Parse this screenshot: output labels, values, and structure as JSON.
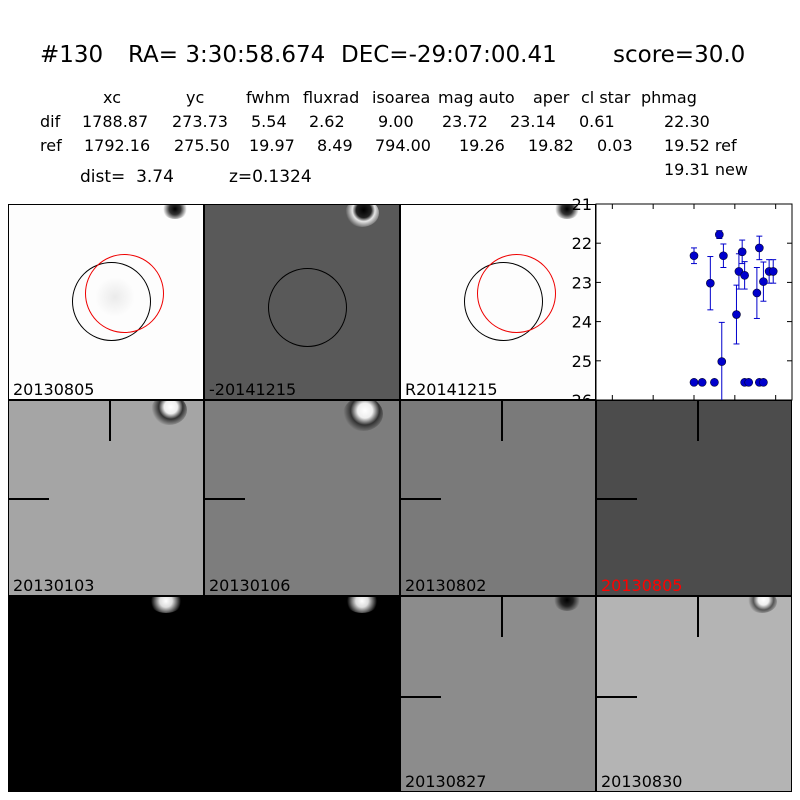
{
  "header": {
    "id": "#130",
    "ra": "RA= 3:30:58.674",
    "dec": "DEC=-29:07:00.41",
    "score": "score=30.0"
  },
  "table": {
    "columns": [
      "xc",
      "yc",
      "fwhm",
      "fluxrad",
      "isoarea",
      "mag auto",
      "aper",
      "cl star",
      "phmag"
    ],
    "dif": {
      "label": "dif",
      "xc": "1788.87",
      "yc": "273.73",
      "fwhm": "5.54",
      "fluxrad": "2.62",
      "isoarea": "9.00",
      "mag_auto": "23.72",
      "aper": "23.14",
      "cl_star": "0.61",
      "phmag": "22.30"
    },
    "ref": {
      "label": "ref",
      "xc": "1792.16",
      "yc": "275.50",
      "fwhm": "19.97",
      "fluxrad": "8.49",
      "isoarea": "794.00",
      "mag_auto": "19.26",
      "aper": "19.82",
      "cl_star": "0.03",
      "phmag": "19.52 ref"
    },
    "new": "19.31 new"
  },
  "dist": "dist=  3.74",
  "z": "z=0.1324",
  "panels": {
    "row1": [
      "20130805",
      "-20141215",
      "R20141215"
    ],
    "row2": [
      "20130103",
      "20130106",
      "20130802",
      "20130805"
    ],
    "row3": [
      "",
      "",
      "20130827",
      "20130830"
    ],
    "highlight_label_color": "#ff0000"
  },
  "chart_data": {
    "type": "scatter",
    "title": "",
    "xlabel": "",
    "ylabel": "",
    "xlim": [
      -120,
      120
    ],
    "ylim": [
      26,
      21
    ],
    "y_inverted": true,
    "xticks": [
      "-100",
      "-50",
      "0",
      "50",
      "100"
    ],
    "yticks": [
      "21",
      "22",
      "23",
      "24",
      "25",
      "26"
    ],
    "marker_color": "#0000cc",
    "points": [
      {
        "x": 0,
        "y": 22.32,
        "err": 0.2
      },
      {
        "x": 20,
        "y": 23.02,
        "err": 0.68
      },
      {
        "x": 31,
        "y": 21.78,
        "err": 0.1
      },
      {
        "x": 36,
        "y": 22.32,
        "err": 0.3
      },
      {
        "x": 34,
        "y": 25.02,
        "err": 1.0
      },
      {
        "x": 52,
        "y": 23.82,
        "err": 0.75
      },
      {
        "x": 55,
        "y": 22.72,
        "err": 0.45
      },
      {
        "x": 59,
        "y": 22.22,
        "err": 0.3
      },
      {
        "x": 62,
        "y": 22.82,
        "err": 0.35
      },
      {
        "x": 80,
        "y": 22.12,
        "err": 0.3
      },
      {
        "x": 77,
        "y": 23.27,
        "err": 0.65
      },
      {
        "x": 85,
        "y": 22.98,
        "err": 0.5
      },
      {
        "x": 92,
        "y": 22.72,
        "err": 0.3
      },
      {
        "x": 97,
        "y": 22.72,
        "err": 0.3
      },
      {
        "x": 0,
        "y": 25.55,
        "err": 0
      },
      {
        "x": 10,
        "y": 25.55,
        "err": 0
      },
      {
        "x": 25,
        "y": 25.55,
        "err": 0
      },
      {
        "x": 62,
        "y": 25.55,
        "err": 0
      },
      {
        "x": 67,
        "y": 25.55,
        "err": 0
      },
      {
        "x": 80,
        "y": 25.55,
        "err": 0
      },
      {
        "x": 85,
        "y": 25.55,
        "err": 0
      }
    ]
  }
}
